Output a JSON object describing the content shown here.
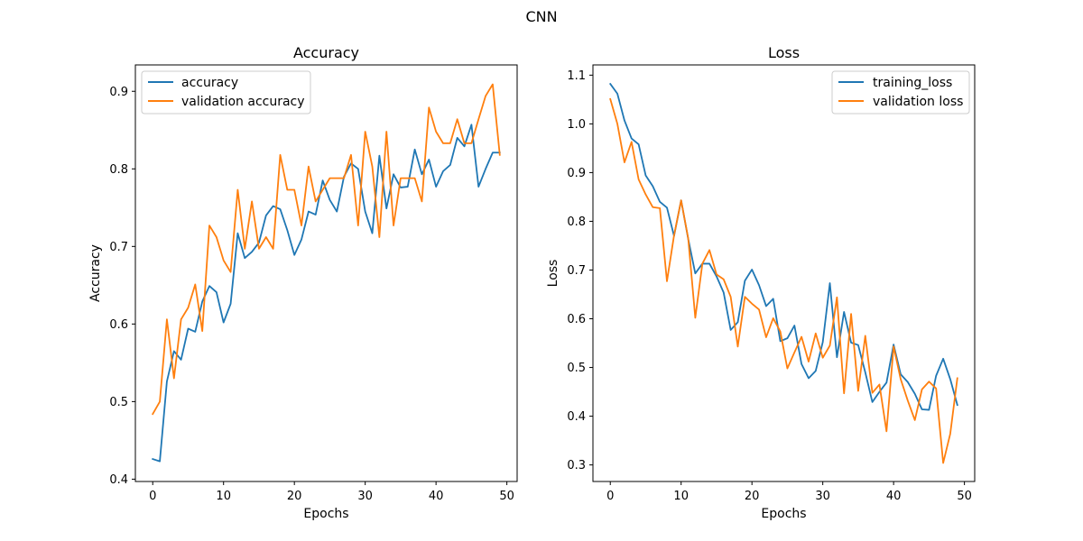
{
  "figure": {
    "suptitle": "CNN",
    "colors": {
      "blue": "#1f77b4",
      "orange": "#ff7f0e"
    }
  },
  "chart_data": [
    {
      "type": "line",
      "title": "Accuracy",
      "xlabel": "Epochs",
      "ylabel": "Accuracy",
      "xlim": [
        -2.45,
        51.45
      ],
      "ylim": [
        0.397,
        0.934
      ],
      "xticks": [
        0,
        10,
        20,
        30,
        40,
        50
      ],
      "xtick_labels": [
        "0",
        "10",
        "20",
        "30",
        "40",
        "50"
      ],
      "yticks": [
        0.4,
        0.5,
        0.6,
        0.7,
        0.8,
        0.9
      ],
      "ytick_labels": [
        "0.4",
        "0.5",
        "0.6",
        "0.7",
        "0.8",
        "0.9"
      ],
      "legend_position": "upper-left",
      "grid": false,
      "x": [
        0,
        1,
        2,
        3,
        4,
        5,
        6,
        7,
        8,
        9,
        10,
        11,
        12,
        13,
        14,
        15,
        16,
        17,
        18,
        19,
        20,
        21,
        22,
        23,
        24,
        25,
        26,
        27,
        28,
        29,
        30,
        31,
        32,
        33,
        34,
        35,
        36,
        37,
        38,
        39,
        40,
        41,
        42,
        43,
        44,
        45,
        46,
        47,
        48,
        49
      ],
      "series": [
        {
          "name": "accuracy",
          "color": "#1f77b4",
          "values": [
            0.426,
            0.423,
            0.526,
            0.565,
            0.554,
            0.594,
            0.59,
            0.629,
            0.649,
            0.641,
            0.602,
            0.626,
            0.717,
            0.685,
            0.693,
            0.705,
            0.74,
            0.752,
            0.748,
            0.721,
            0.689,
            0.709,
            0.745,
            0.741,
            0.785,
            0.76,
            0.745,
            0.79,
            0.807,
            0.8,
            0.745,
            0.717,
            0.817,
            0.749,
            0.793,
            0.776,
            0.777,
            0.825,
            0.793,
            0.812,
            0.777,
            0.797,
            0.805,
            0.84,
            0.829,
            0.857,
            0.777,
            0.8,
            0.821,
            0.821
          ]
        },
        {
          "name": "validation accuracy",
          "color": "#ff7f0e",
          "values": [
            0.484,
            0.5,
            0.606,
            0.53,
            0.606,
            0.621,
            0.651,
            0.591,
            0.727,
            0.712,
            0.682,
            0.667,
            0.773,
            0.697,
            0.758,
            0.697,
            0.712,
            0.697,
            0.818,
            0.773,
            0.773,
            0.727,
            0.803,
            0.758,
            0.773,
            0.788,
            0.788,
            0.788,
            0.818,
            0.727,
            0.848,
            0.803,
            0.712,
            0.848,
            0.727,
            0.788,
            0.788,
            0.788,
            0.758,
            0.879,
            0.848,
            0.833,
            0.833,
            0.864,
            0.833,
            0.833,
            0.864,
            0.894,
            0.909,
            0.818
          ]
        }
      ]
    },
    {
      "type": "line",
      "title": "Loss",
      "xlabel": "Epochs",
      "ylabel": "Loss",
      "xlim": [
        -2.45,
        51.45
      ],
      "ylim": [
        0.266,
        1.121
      ],
      "xticks": [
        0,
        10,
        20,
        30,
        40,
        50
      ],
      "xtick_labels": [
        "0",
        "10",
        "20",
        "30",
        "40",
        "50"
      ],
      "yticks": [
        0.3,
        0.4,
        0.5,
        0.6,
        0.7,
        0.8,
        0.9,
        1.0,
        1.1
      ],
      "ytick_labels": [
        "0.3",
        "0.4",
        "0.5",
        "0.6",
        "0.7",
        "0.8",
        "0.9",
        "1.0",
        "1.1"
      ],
      "legend_position": "upper-right",
      "grid": false,
      "x": [
        0,
        1,
        2,
        3,
        4,
        5,
        6,
        7,
        8,
        9,
        10,
        11,
        12,
        13,
        14,
        15,
        16,
        17,
        18,
        19,
        20,
        21,
        22,
        23,
        24,
        25,
        26,
        27,
        28,
        29,
        30,
        31,
        32,
        33,
        34,
        35,
        36,
        37,
        38,
        39,
        40,
        41,
        42,
        43,
        44,
        45,
        46,
        47,
        48,
        49
      ],
      "series": [
        {
          "name": "training_loss",
          "color": "#1f77b4",
          "values": [
            1.082,
            1.062,
            1.007,
            0.97,
            0.958,
            0.894,
            0.872,
            0.84,
            0.828,
            0.77,
            0.843,
            0.764,
            0.693,
            0.713,
            0.713,
            0.687,
            0.654,
            0.577,
            0.593,
            0.678,
            0.701,
            0.669,
            0.626,
            0.641,
            0.554,
            0.56,
            0.586,
            0.507,
            0.478,
            0.493,
            0.552,
            0.673,
            0.521,
            0.614,
            0.551,
            0.546,
            0.49,
            0.429,
            0.45,
            0.469,
            0.547,
            0.486,
            0.47,
            0.446,
            0.414,
            0.413,
            0.483,
            0.518,
            0.476,
            0.423
          ]
        },
        {
          "name": "validation loss",
          "color": "#ff7f0e",
          "values": [
            1.051,
            1.0,
            0.921,
            0.963,
            0.886,
            0.855,
            0.829,
            0.827,
            0.677,
            0.771,
            0.843,
            0.765,
            0.602,
            0.713,
            0.741,
            0.691,
            0.681,
            0.645,
            0.543,
            0.645,
            0.631,
            0.619,
            0.562,
            0.601,
            0.574,
            0.498,
            0.531,
            0.563,
            0.512,
            0.57,
            0.52,
            0.545,
            0.644,
            0.447,
            0.61,
            0.452,
            0.565,
            0.448,
            0.465,
            0.369,
            0.543,
            0.476,
            0.432,
            0.392,
            0.455,
            0.471,
            0.457,
            0.304,
            0.364,
            0.478
          ]
        }
      ]
    }
  ]
}
